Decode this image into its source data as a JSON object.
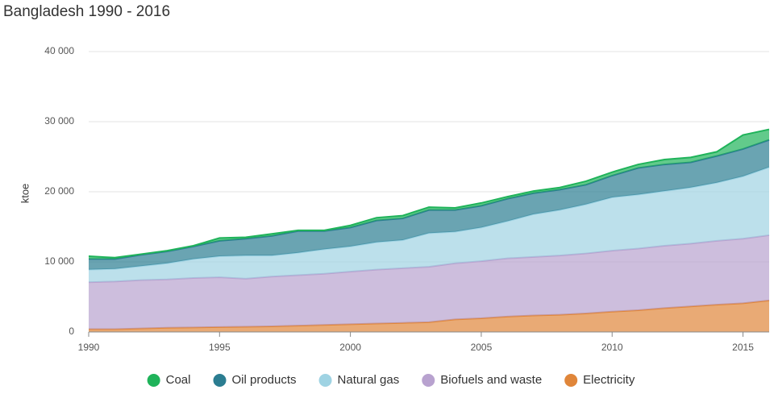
{
  "chart_data": {
    "type": "stacked_area",
    "title": "Bangladesh 1990 - 2016",
    "y_label": "ktoe",
    "x": [
      1990,
      1991,
      1992,
      1993,
      1994,
      1995,
      1996,
      1997,
      1998,
      1999,
      2000,
      2001,
      2002,
      2003,
      2004,
      2005,
      2006,
      2007,
      2008,
      2009,
      2010,
      2011,
      2012,
      2013,
      2014,
      2015,
      2016
    ],
    "xlim": [
      1990,
      2016
    ],
    "xticks": [
      1990,
      1995,
      2000,
      2005,
      2010,
      2015
    ],
    "ylim": [
      0,
      40000
    ],
    "yticks": [
      0,
      {
        "value": 10000,
        "label": "10 000"
      },
      {
        "value": 20000,
        "label": "20 000"
      },
      {
        "value": 30000,
        "label": "30 000"
      },
      {
        "value": 40000,
        "label": "40 000"
      }
    ],
    "grid": true,
    "series": [
      {
        "name": "Coal",
        "color": "#1fb35a",
        "values": [
          400,
          200,
          100,
          100,
          100,
          400,
          200,
          300,
          100,
          100,
          300,
          400,
          400,
          400,
          300,
          400,
          300,
          300,
          300,
          500,
          500,
          500,
          700,
          700,
          600,
          2000,
          1500
        ]
      },
      {
        "name": "Oil products",
        "color": "#2b7d91",
        "values": [
          1500,
          1400,
          1600,
          1700,
          1800,
          2200,
          2400,
          2800,
          3100,
          2600,
          2700,
          3100,
          3100,
          3300,
          3100,
          3100,
          3200,
          3000,
          2900,
          2800,
          3100,
          3800,
          3800,
          3600,
          3800,
          3900,
          3900
        ]
      },
      {
        "name": "Natural gas",
        "color": "#9fd3e3",
        "values": [
          1800,
          1800,
          2000,
          2300,
          2700,
          3000,
          3300,
          3000,
          3200,
          3500,
          3600,
          3900,
          4000,
          4800,
          4500,
          4800,
          5300,
          6100,
          6500,
          7000,
          7600,
          7700,
          7800,
          8000,
          8300,
          8900,
          9700
        ]
      },
      {
        "name": "Biofuels and waste",
        "color": "#b8a2cf",
        "values": [
          6700,
          6800,
          6900,
          6900,
          7050,
          7100,
          6850,
          7100,
          7200,
          7300,
          7500,
          7700,
          7800,
          7900,
          8000,
          8150,
          8300,
          8350,
          8450,
          8550,
          8700,
          8800,
          8900,
          8950,
          9100,
          9200,
          9300
        ]
      },
      {
        "name": "Electricity",
        "color": "#e0863a",
        "values": [
          400,
          400,
          500,
          600,
          650,
          700,
          750,
          800,
          900,
          1000,
          1100,
          1200,
          1300,
          1400,
          1800,
          1950,
          2200,
          2350,
          2450,
          2650,
          2900,
          3100,
          3400,
          3650,
          3900,
          4100,
          4500
        ]
      }
    ]
  }
}
